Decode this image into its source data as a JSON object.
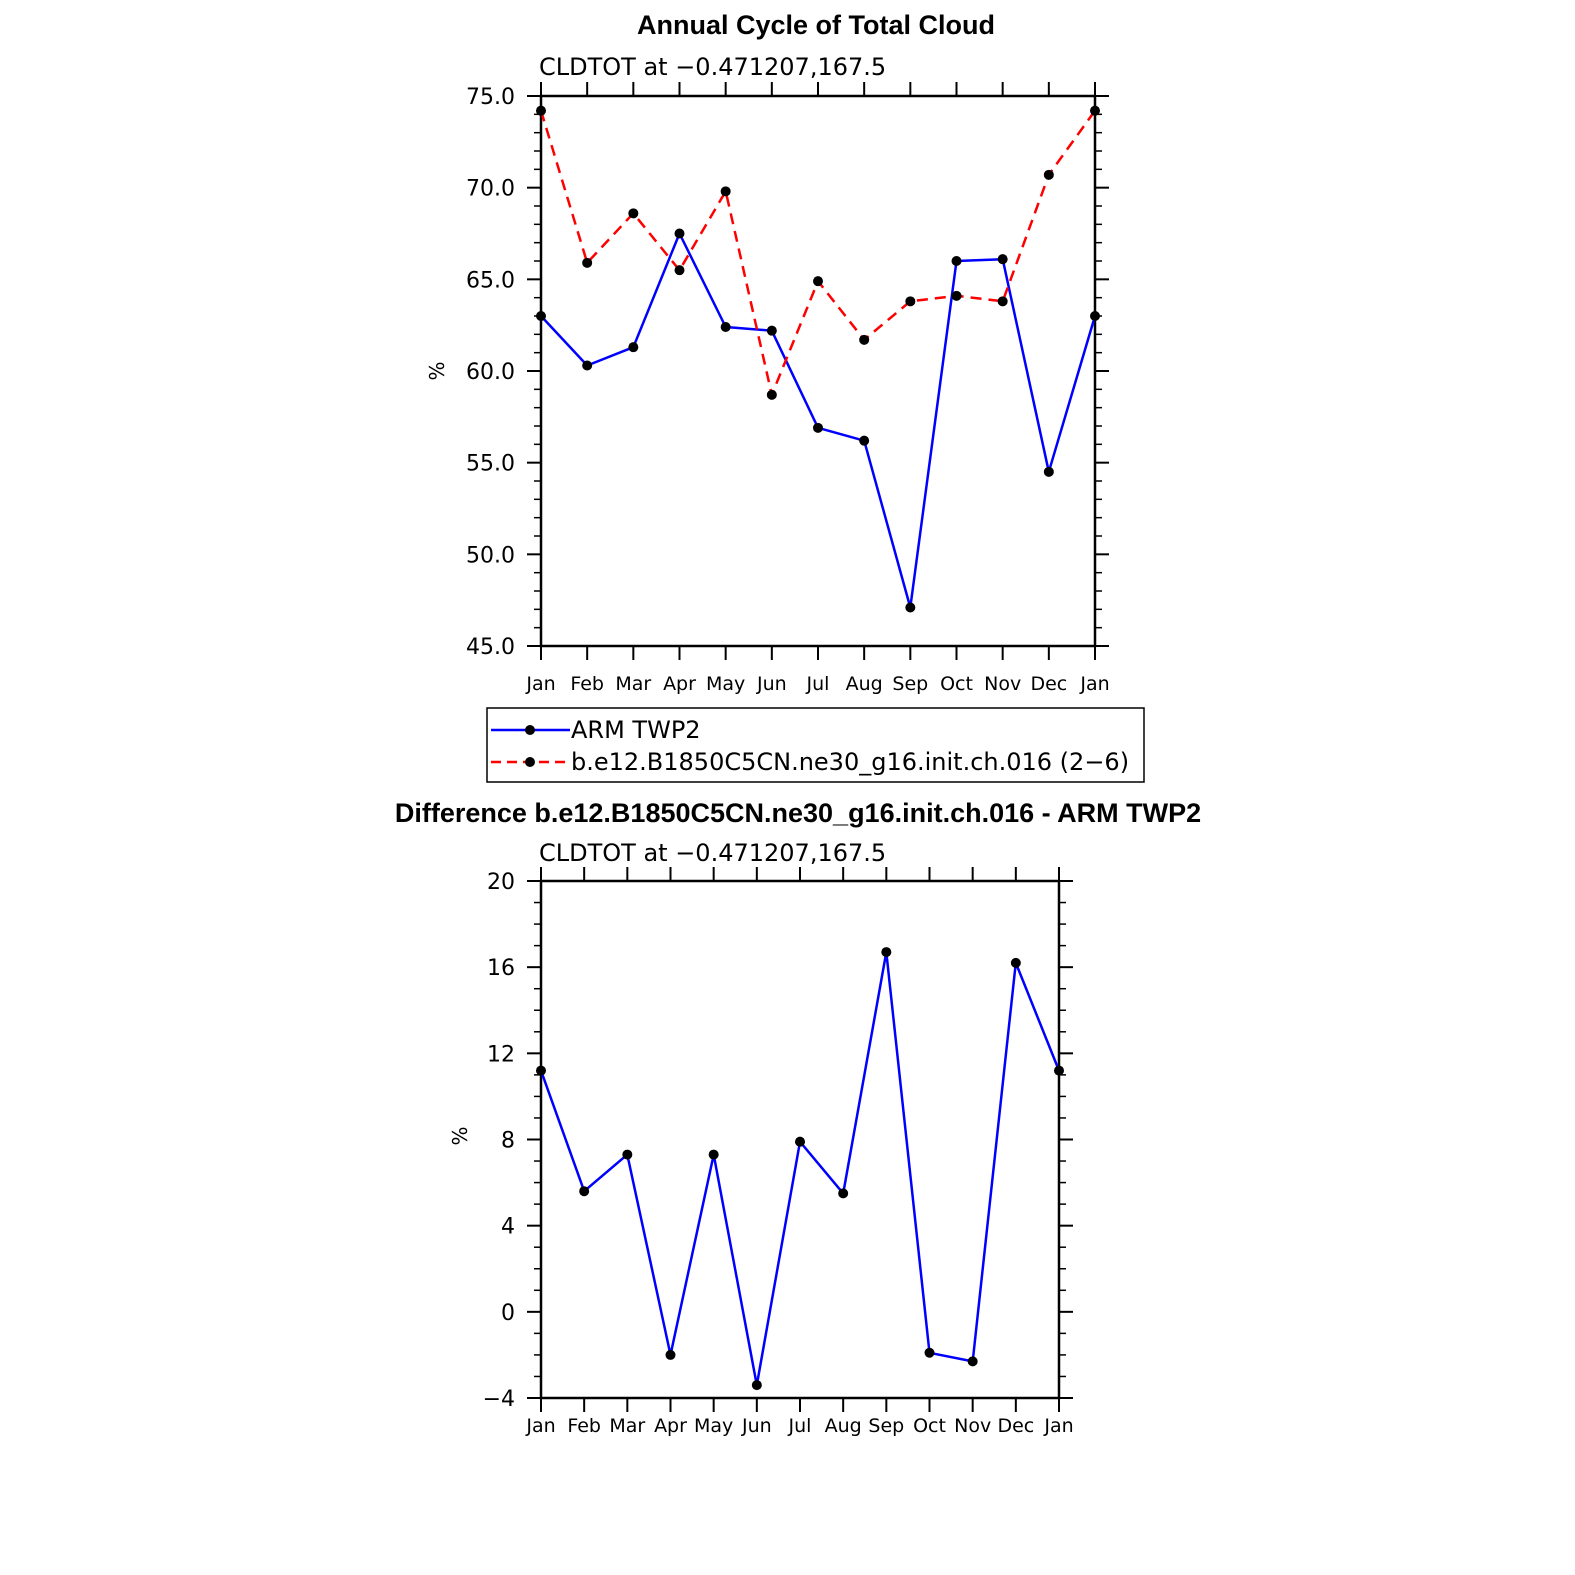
{
  "chart_data": [
    {
      "type": "line",
      "title": "Annual Cycle of Total Cloud",
      "subtitle": "CLDTOT at −0.471207,167.5",
      "ylabel": "%",
      "xlabel": "",
      "ylim": [
        45.0,
        75.0
      ],
      "yticks": [
        "45.0",
        "50.0",
        "55.0",
        "60.0",
        "65.0",
        "70.0",
        "75.0"
      ],
      "ytick_values": [
        45,
        50,
        55,
        60,
        65,
        70,
        75
      ],
      "categories": [
        "Jan",
        "Feb",
        "Mar",
        "Apr",
        "May",
        "Jun",
        "Jul",
        "Aug",
        "Sep",
        "Oct",
        "Nov",
        "Dec",
        "Jan"
      ],
      "series": [
        {
          "name": "ARM TWP2",
          "color": "#0000ff",
          "dash": "solid",
          "values": [
            63.0,
            60.3,
            61.3,
            67.5,
            62.4,
            62.2,
            56.9,
            56.2,
            47.1,
            66.0,
            66.1,
            54.5,
            63.0
          ]
        },
        {
          "name": "b.e12.B1850C5CN.ne30_g16.init.ch.016 (2−6)",
          "color": "#ff0000",
          "dash": "dashed",
          "values": [
            74.2,
            65.9,
            68.6,
            65.5,
            69.8,
            58.7,
            64.9,
            61.7,
            63.8,
            64.1,
            63.8,
            70.7,
            74.2
          ]
        }
      ],
      "legend": "bottom"
    },
    {
      "type": "line",
      "title": "Difference b.e12.B1850C5CN.ne30_g16.init.ch.016 - ARM TWP2",
      "subtitle": "CLDTOT at −0.471207,167.5",
      "ylabel": "%",
      "xlabel": "",
      "ylim": [
        -4,
        20
      ],
      "yticks": [
        "−4",
        "0",
        "4",
        "8",
        "12",
        "16",
        "20"
      ],
      "ytick_values": [
        -4,
        0,
        4,
        8,
        12,
        16,
        20
      ],
      "categories": [
        "Jan",
        "Feb",
        "Mar",
        "Apr",
        "May",
        "Jun",
        "Jul",
        "Aug",
        "Sep",
        "Oct",
        "Nov",
        "Dec",
        "Jan"
      ],
      "series": [
        {
          "name": "Difference",
          "color": "#0000ff",
          "dash": "solid",
          "values": [
            11.2,
            5.6,
            7.3,
            -2.0,
            7.3,
            -3.4,
            7.9,
            5.5,
            16.7,
            -1.9,
            -2.3,
            16.2,
            11.2
          ]
        }
      ]
    }
  ]
}
